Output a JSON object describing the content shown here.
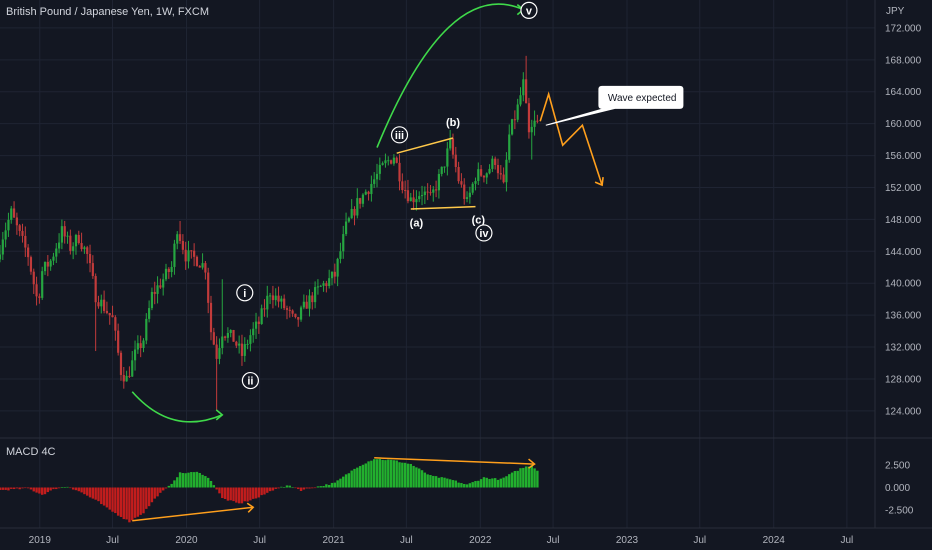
{
  "header": {
    "title": "British Pound / Japanese Yen, 1W, FXCM"
  },
  "indicator": {
    "name": "MACD 4C"
  },
  "colors": {
    "background": "#131722",
    "up": "#26a641",
    "down": "#c23b3b",
    "green_line": "#3fd94a",
    "orange_line": "#ff9f1c",
    "grid": "#1f2433",
    "macd_green": "#22b02e",
    "macd_red": "#c21d1d"
  },
  "chart_data": {
    "type": "candlestick",
    "title": "British Pound / Japanese Yen, 1W, FXCM",
    "y_axis": {
      "unit": "JPY",
      "ticks": [
        "172.000",
        "168.000",
        "164.000",
        "160.000",
        "156.000",
        "152.000",
        "148.000",
        "144.000",
        "140.000",
        "136.000",
        "132.000",
        "128.000",
        "124.000"
      ],
      "ylim": [
        120.6,
        175.5
      ]
    },
    "macd_axis": {
      "ticks": [
        "2.500",
        "0.000",
        "-2.500"
      ],
      "ylim": [
        -4.5,
        5.5
      ]
    },
    "x_axis": {
      "ticks": [
        {
          "label": "2019",
          "date": "2019-01-01"
        },
        {
          "label": "Jul",
          "date": "2019-07-01"
        },
        {
          "label": "2020",
          "date": "2020-01-01"
        },
        {
          "label": "Jul",
          "date": "2020-07-01"
        },
        {
          "label": "2021",
          "date": "2021-01-01"
        },
        {
          "label": "Jul",
          "date": "2021-07-01"
        },
        {
          "label": "2022",
          "date": "2022-01-01"
        },
        {
          "label": "Jul",
          "date": "2022-07-01"
        },
        {
          "label": "2023",
          "date": "2023-01-01"
        },
        {
          "label": "Jul",
          "date": "2023-07-01"
        },
        {
          "label": "2024",
          "date": "2024-01-01"
        },
        {
          "label": "Jul",
          "date": "2024-07-01"
        }
      ],
      "range": [
        "2018-09-24",
        "2024-09-09"
      ]
    },
    "price_path": [
      [
        "2018-09-24",
        143
      ],
      [
        "2018-10-08",
        146
      ],
      [
        "2018-10-29",
        148.8
      ],
      [
        "2018-11-19",
        146
      ],
      [
        "2018-12-10",
        143.5
      ],
      [
        "2019-01-03",
        137.5
      ],
      [
        "2019-01-14",
        141.5
      ],
      [
        "2019-02-04",
        142.8
      ],
      [
        "2019-03-04",
        146.5
      ],
      [
        "2019-03-25",
        144.5
      ],
      [
        "2019-04-15",
        145.8
      ],
      [
        "2019-05-06",
        143.5
      ],
      [
        "2019-05-27",
        138.5
      ],
      [
        "2019-06-17",
        137
      ],
      [
        "2019-07-08",
        135.5
      ],
      [
        "2019-07-29",
        129
      ],
      [
        "2019-08-12",
        128
      ],
      [
        "2019-09-02",
        131
      ],
      [
        "2019-09-23",
        133
      ],
      [
        "2019-10-14",
        138.5
      ],
      [
        "2019-11-04",
        140
      ],
      [
        "2019-12-02",
        142
      ],
      [
        "2019-12-16",
        147
      ],
      [
        "2020-01-06",
        143.5
      ],
      [
        "2020-02-03",
        143
      ],
      [
        "2020-02-24",
        142
      ],
      [
        "2020-03-09",
        134
      ],
      [
        "2020-03-23",
        131
      ],
      [
        "2020-04-06",
        134
      ],
      [
        "2020-05-04",
        133
      ],
      [
        "2020-05-25",
        131
      ],
      [
        "2020-06-15",
        133.5
      ],
      [
        "2020-07-06",
        135
      ],
      [
        "2020-08-03",
        139
      ],
      [
        "2020-09-07",
        137
      ],
      [
        "2020-10-05",
        135
      ],
      [
        "2020-11-02",
        137.5
      ],
      [
        "2020-12-07",
        139.5
      ],
      [
        "2021-01-11",
        141
      ],
      [
        "2021-02-08",
        147
      ],
      [
        "2021-03-08",
        150
      ],
      [
        "2021-04-05",
        152
      ],
      [
        "2021-05-17",
        155
      ],
      [
        "2021-06-07",
        156
      ],
      [
        "2021-06-28",
        152.5
      ],
      [
        "2021-07-19",
        150.5
      ],
      [
        "2021-08-16",
        151.5
      ],
      [
        "2021-09-06",
        150.5
      ],
      [
        "2021-10-04",
        154
      ],
      [
        "2021-10-25",
        157.5
      ],
      [
        "2021-11-15",
        153
      ],
      [
        "2021-12-06",
        150
      ],
      [
        "2021-12-27",
        153.5
      ],
      [
        "2022-01-24",
        154
      ],
      [
        "2022-02-14",
        155.5
      ],
      [
        "2022-03-07",
        152
      ],
      [
        "2022-03-21",
        158.5
      ],
      [
        "2022-04-11",
        162
      ],
      [
        "2022-04-25",
        165
      ],
      [
        "2022-05-09",
        158.5
      ],
      [
        "2022-05-23",
        160
      ]
    ],
    "wicks": [
      {
        "date": "2019-05-20",
        "low": 131.5
      },
      {
        "date": "2019-12-16",
        "high": 147.8
      },
      {
        "date": "2020-03-16",
        "low": 124
      },
      {
        "date": "2020-03-30",
        "high": 140.5
      },
      {
        "date": "2022-04-25",
        "high": 168.5
      },
      {
        "date": "2022-05-09",
        "low": 155.5
      }
    ],
    "macd_path": [
      [
        "2018-09-24",
        -0.3
      ],
      [
        "2018-12-03",
        -0.1
      ],
      [
        "2019-01-07",
        -0.8
      ],
      [
        "2019-02-11",
        -0.1
      ],
      [
        "2019-03-11",
        0.1
      ],
      [
        "2019-04-08",
        -0.4
      ],
      [
        "2019-05-27",
        -1.6
      ],
      [
        "2019-06-17",
        -2.3
      ],
      [
        "2019-08-12",
        -3.8
      ],
      [
        "2019-09-16",
        -2.8
      ],
      [
        "2019-10-21",
        -0.9
      ],
      [
        "2019-11-18",
        0.1
      ],
      [
        "2019-12-16",
        1.6
      ],
      [
        "2020-02-03",
        1.7
      ],
      [
        "2020-03-02",
        0.8
      ],
      [
        "2020-03-30",
        -1.2
      ],
      [
        "2020-05-11",
        -1.8
      ],
      [
        "2020-06-29",
        -1.1
      ],
      [
        "2020-08-10",
        -0.1
      ],
      [
        "2020-09-14",
        0.2
      ],
      [
        "2020-10-12",
        -0.3
      ],
      [
        "2020-11-23",
        0.1
      ],
      [
        "2021-01-04",
        0.5
      ],
      [
        "2021-03-01",
        2.3
      ],
      [
        "2021-04-12",
        3.2
      ],
      [
        "2021-05-31",
        3.0
      ],
      [
        "2021-07-12",
        2.6
      ],
      [
        "2021-08-30",
        1.3
      ],
      [
        "2021-10-18",
        0.9
      ],
      [
        "2021-11-29",
        0.3
      ],
      [
        "2022-01-10",
        1.1
      ],
      [
        "2022-02-21",
        0.9
      ],
      [
        "2022-04-11",
        2.1
      ],
      [
        "2022-05-09",
        2.5
      ],
      [
        "2022-05-23",
        1.9
      ]
    ],
    "annotations": [
      {
        "label": "i",
        "date": "2020-05-25",
        "price": 138.8
      },
      {
        "label": "ii",
        "date": "2020-06-08",
        "price": 127.8
      },
      {
        "label": "iii",
        "date": "2021-06-14",
        "price": 158.6
      },
      {
        "label": "(a)",
        "date": "2021-07-26",
        "price": 147.6
      },
      {
        "label": "(b)",
        "date": "2021-10-25",
        "price": 160.2
      },
      {
        "label": "(c)",
        "date": "2021-12-27",
        "price": 148.0
      },
      {
        "label": "iv",
        "date": "2022-01-10",
        "price": 146.3
      },
      {
        "label": "v",
        "date": "2022-05-02",
        "price": 174.2
      }
    ],
    "projection": [
      [
        "2022-05-30",
        160.3
      ],
      [
        "2022-06-20",
        163.7
      ],
      [
        "2022-07-25",
        157.3
      ],
      [
        "2022-09-12",
        159.8
      ],
      [
        "2022-10-31",
        152.3
      ]
    ],
    "callout": {
      "text": "Wave expected",
      "date": "2022-11-07",
      "price": 163.3
    }
  }
}
